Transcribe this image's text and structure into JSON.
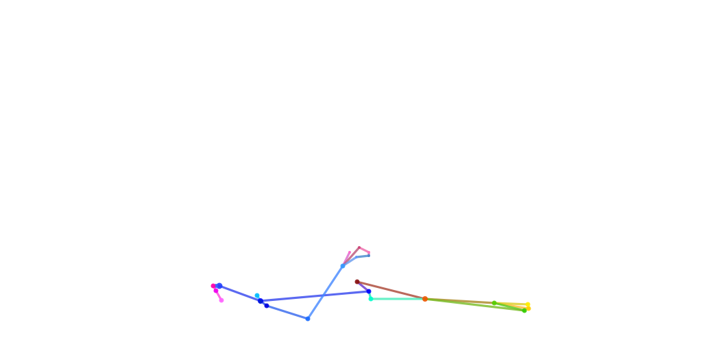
{
  "diagram": {
    "type": "pose-skeleton",
    "background": "#ffffff",
    "keypoints": [
      {
        "id": "k01",
        "color": "#1f3fff"
      },
      {
        "id": "k02",
        "color": "#0000ff"
      },
      {
        "id": "k03",
        "color": "#3366ff"
      },
      {
        "id": "k04",
        "color": "#ff00aa"
      },
      {
        "id": "k05",
        "color": "#ee00ee"
      },
      {
        "id": "k06",
        "color": "#ff66ff"
      },
      {
        "id": "k07",
        "color": "#00bbff"
      },
      {
        "id": "k08",
        "color": "#0000dd"
      },
      {
        "id": "k09",
        "color": "#0022cc"
      },
      {
        "id": "k10",
        "color": "#1a6bff"
      },
      {
        "id": "k11",
        "color": "#3399ff"
      },
      {
        "id": "k12",
        "color": "#ff66cc"
      },
      {
        "id": "k13",
        "color": "#cc4477"
      },
      {
        "id": "k14",
        "color": "#ff77bb"
      },
      {
        "id": "k15",
        "color": "#6699ff"
      },
      {
        "id": "k16",
        "color": "#4488cc"
      },
      {
        "id": "k17",
        "color": "#881111"
      },
      {
        "id": "k18",
        "color": "#0000ff"
      },
      {
        "id": "k19",
        "color": "#00ffcc"
      },
      {
        "id": "k20",
        "color": "#ee5500"
      },
      {
        "id": "k21",
        "color": "#55cc00"
      },
      {
        "id": "k22",
        "color": "#ffcc00"
      },
      {
        "id": "k23",
        "color": "#ffee00"
      },
      {
        "id": "k24",
        "color": "#33cc00"
      }
    ],
    "bones": [
      {
        "from": "k01",
        "to": "k02",
        "color": "#3344ee"
      },
      {
        "from": "k02",
        "to": "k18",
        "color": "#3344ee"
      },
      {
        "from": "k01",
        "to": "k04",
        "color": "#cc22cc"
      },
      {
        "from": "k04",
        "to": "k05",
        "color": "#ff44dd"
      },
      {
        "from": "k05",
        "to": "k06",
        "color": "#ff44dd"
      },
      {
        "from": "k02",
        "to": "k07",
        "color": "#33bbff"
      },
      {
        "from": "k02",
        "to": "k08",
        "color": "#2244ee"
      },
      {
        "from": "k08",
        "to": "k10",
        "color": "#3366ee"
      },
      {
        "from": "k10",
        "to": "k11",
        "color": "#4488ff"
      },
      {
        "from": "k11",
        "to": "k12",
        "color": "#dd66cc"
      },
      {
        "from": "k11",
        "to": "k13",
        "color": "#bb5577"
      },
      {
        "from": "k13",
        "to": "k14",
        "color": "#ee66aa"
      },
      {
        "from": "k11",
        "to": "k15",
        "color": "#6699ee"
      },
      {
        "from": "k15",
        "to": "k16",
        "color": "#4488cc"
      },
      {
        "from": "k14",
        "to": "k16",
        "color": "#bb66aa"
      },
      {
        "from": "k17",
        "to": "k18",
        "color": "#6633cc"
      },
      {
        "from": "k17",
        "to": "k20",
        "color": "#aa4433"
      },
      {
        "from": "k18",
        "to": "k19",
        "color": "#22ddbb"
      },
      {
        "from": "k19",
        "to": "k20",
        "color": "#44eebb"
      },
      {
        "from": "k20",
        "to": "k21",
        "color": "#aa8822"
      },
      {
        "from": "k21",
        "to": "k22",
        "color": "#ffbb33"
      },
      {
        "from": "k21",
        "to": "k23",
        "color": "#ddcc22"
      },
      {
        "from": "k21",
        "to": "k24",
        "color": "#55cc22"
      },
      {
        "from": "k20",
        "to": "k24",
        "color": "#77bb22"
      }
    ]
  }
}
